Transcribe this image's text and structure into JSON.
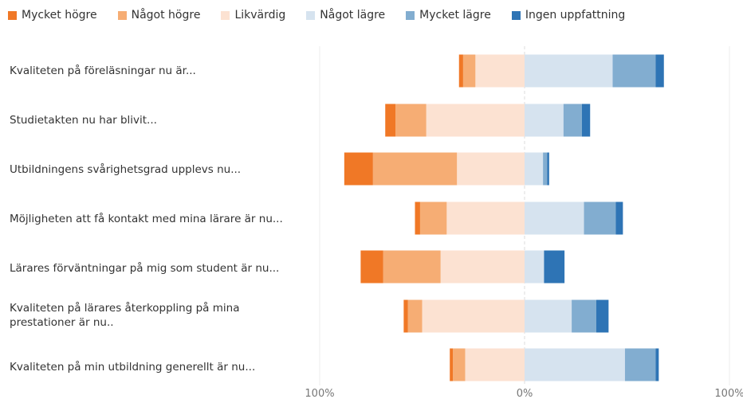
{
  "legend": [
    "Mycket högre",
    "Något högre",
    "Likvärdig",
    "Något lägre",
    "Mycket lägre",
    "Ingen uppfattning"
  ],
  "colors": [
    "#f07826",
    "#f6ad74",
    "#fce2d2",
    "#d6e3ef",
    "#82add0",
    "#2e74b5"
  ],
  "chart_data": {
    "type": "bar",
    "orientation": "horizontal",
    "stacking": "diverging",
    "categories": [
      "Kvaliteten på föreläsningar nu är...",
      "Studietakten nu har blivit...",
      "Utbildningens svårighetsgrad upplevs nu...",
      "Möjligheten att få kontakt med mina lärare är nu...",
      "Lärares förväntningar på mig som student är nu...",
      "Kvaliteten på lärares återkoppling på mina prestationer är nu..",
      "Kvaliteten på min utbildning generellt är nu..."
    ],
    "series": [
      {
        "name": "Mycket högre",
        "side": "left",
        "values": [
          2,
          5,
          14,
          2.5,
          11,
          2,
          1.5
        ]
      },
      {
        "name": "Något högre",
        "side": "left",
        "values": [
          6,
          15,
          41,
          13,
          28,
          7,
          6
        ]
      },
      {
        "name": "Likvärdig",
        "side": "left",
        "values": [
          24,
          48,
          33,
          38,
          41,
          50,
          29
        ]
      },
      {
        "name": "Något lägre",
        "side": "right",
        "values": [
          43,
          19,
          9,
          29,
          9.5,
          23,
          49
        ]
      },
      {
        "name": "Mycket lägre",
        "side": "right",
        "values": [
          21,
          9,
          2,
          15.5,
          0,
          12,
          15
        ]
      },
      {
        "name": "Ingen uppfattning",
        "side": "right",
        "values": [
          4,
          4,
          1,
          3.5,
          10,
          6,
          1.5
        ]
      }
    ],
    "xlim": [
      -100,
      100
    ],
    "xticks": [
      {
        "value": -100,
        "label": "100%"
      },
      {
        "value": 0,
        "label": "0%"
      },
      {
        "value": 100,
        "label": "100%"
      }
    ],
    "legend_position": "top-left"
  }
}
